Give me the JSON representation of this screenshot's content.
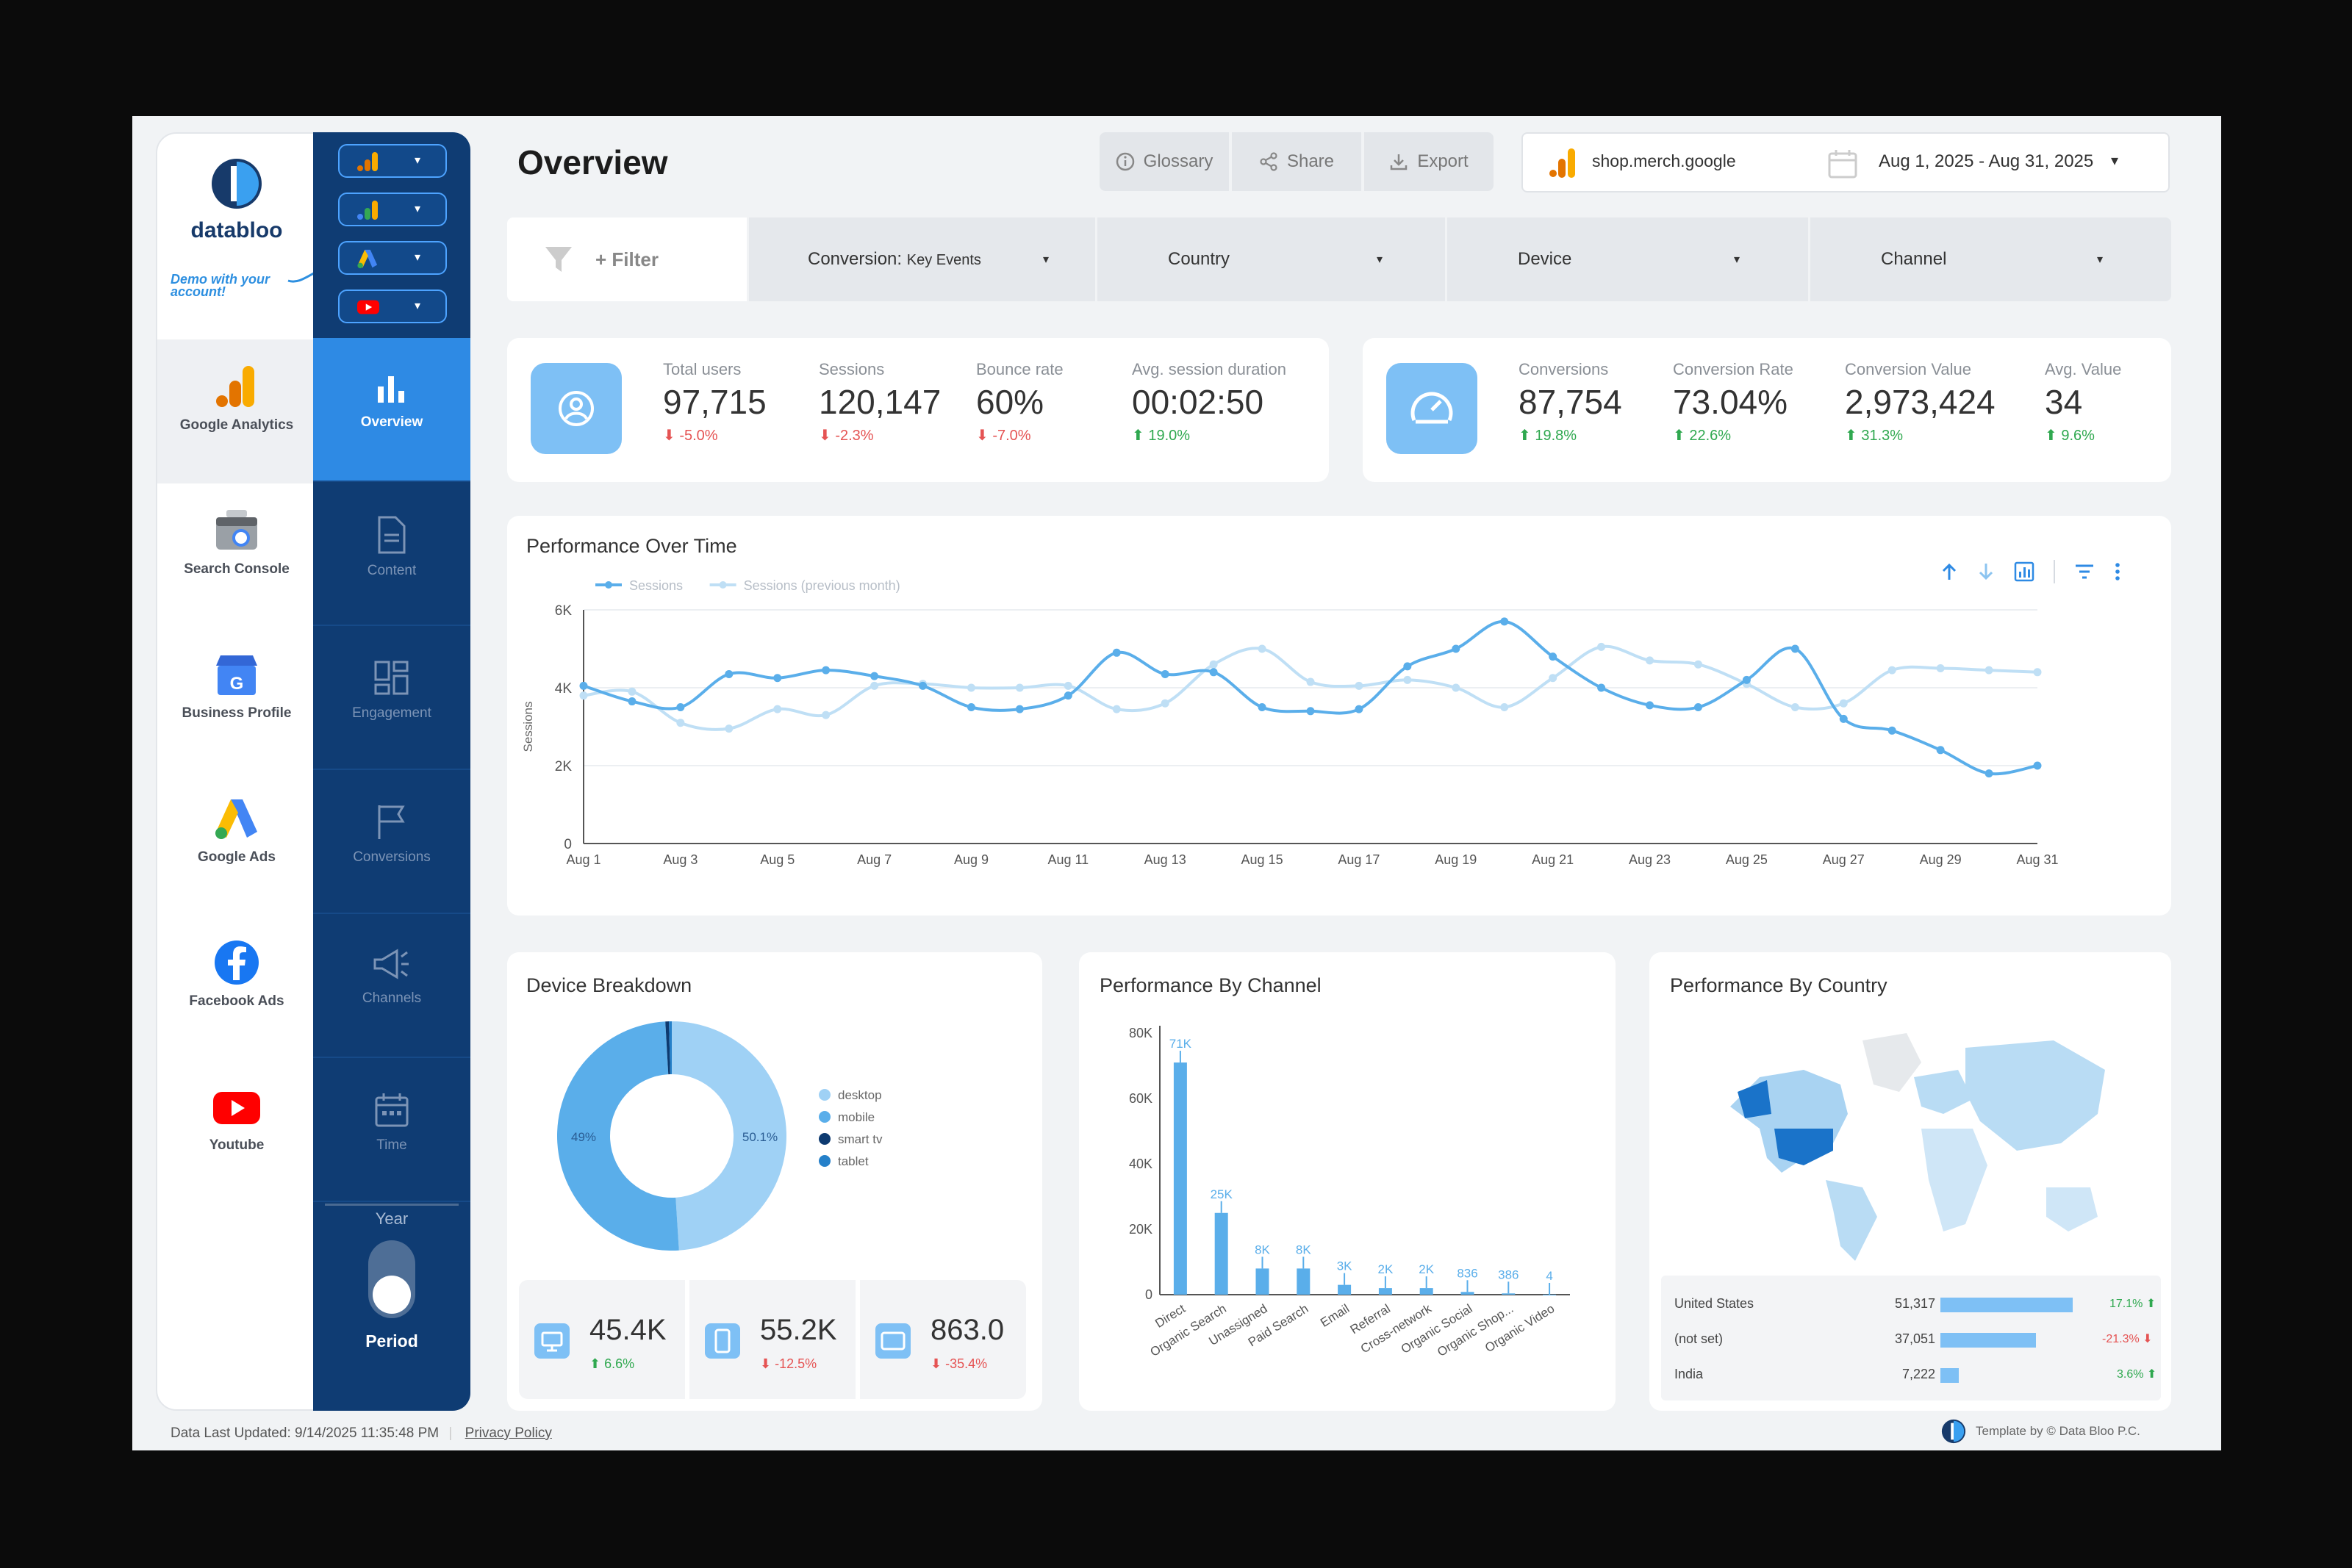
{
  "brand": {
    "name": "databloo",
    "demo_note": "Demo with your account!"
  },
  "sources": [
    {
      "label": "Google Analytics",
      "icon": "google-analytics-icon",
      "active": true
    },
    {
      "label": "Search Console",
      "icon": "search-console-icon"
    },
    {
      "label": "Business Profile",
      "icon": "business-profile-icon"
    },
    {
      "label": "Google Ads",
      "icon": "google-ads-icon"
    },
    {
      "label": "Facebook Ads",
      "icon": "facebook-icon"
    },
    {
      "label": "Youtube",
      "icon": "youtube-icon"
    }
  ],
  "account_buttons": [
    "google-analytics-icon",
    "google-analytics-4-icon",
    "google-ads-icon",
    "youtube-icon"
  ],
  "nav": [
    {
      "label": "Overview",
      "icon": "bar-chart-icon",
      "active": true
    },
    {
      "label": "Content",
      "icon": "document-icon"
    },
    {
      "label": "Engagement",
      "icon": "dashboard-icon"
    },
    {
      "label": "Conversions",
      "icon": "flag-icon"
    },
    {
      "label": "Channels",
      "icon": "megaphone-icon"
    },
    {
      "label": "Time",
      "icon": "calendar-icon"
    }
  ],
  "period": {
    "year_label": "Year",
    "period_label": "Period"
  },
  "header": {
    "title": "Overview",
    "glossary": "Glossary",
    "share": "Share",
    "export": "Export",
    "site": "shop.merch.google",
    "date_range": "Aug 1, 2025 - Aug 31, 2025"
  },
  "filters": {
    "add": "+ Filter",
    "conversion_prefix": "Conversion:",
    "conversion_value": "Key Events",
    "country": "Country",
    "device": "Device",
    "channel": "Channel"
  },
  "kpis_users": [
    {
      "label": "Total users",
      "value": "97,715",
      "change": "-5.0%",
      "dir": "down"
    },
    {
      "label": "Sessions",
      "value": "120,147",
      "change": "-2.3%",
      "dir": "down"
    },
    {
      "label": "Bounce rate",
      "value": "60%",
      "change": "-7.0%",
      "dir": "down"
    },
    {
      "label": "Avg. session duration",
      "value": "00:02:50",
      "change": "19.0%",
      "dir": "up"
    }
  ],
  "kpis_conversions": [
    {
      "label": "Conversions",
      "value": "87,754",
      "change": "19.8%",
      "dir": "up"
    },
    {
      "label": "Conversion Rate",
      "value": "73.04%",
      "change": "22.6%",
      "dir": "up"
    },
    {
      "label": "Conversion Value",
      "value": "2,973,424",
      "change": "31.3%",
      "dir": "up"
    },
    {
      "label": "Avg. Value",
      "value": "34",
      "change": "9.6%",
      "dir": "up"
    }
  ],
  "performance": {
    "title": "Performance Over Time",
    "ylabel": "Sessions"
  },
  "device": {
    "title": "Device Breakdown",
    "stats": [
      {
        "icon": "desktop-icon",
        "value": "45.4K",
        "change": "6.6%",
        "dir": "up"
      },
      {
        "icon": "mobile-icon",
        "value": "55.2K",
        "change": "-12.5%",
        "dir": "down"
      },
      {
        "icon": "tv-icon",
        "value": "863.0",
        "change": "-35.4%",
        "dir": "down"
      }
    ]
  },
  "channel": {
    "title": "Performance By Channel"
  },
  "country": {
    "title": "Performance By Country",
    "rows": [
      {
        "name": "United States",
        "value": "51,317",
        "share": 1.0,
        "change": "17.1%",
        "dir": "up"
      },
      {
        "name": "(not set)",
        "value": "37,051",
        "share": 0.72,
        "change": "-21.3%",
        "dir": "down"
      },
      {
        "name": "India",
        "value": "7,222",
        "share": 0.14,
        "change": "3.6%",
        "dir": "up"
      }
    ]
  },
  "footer": {
    "updated": "Data Last Updated: 9/14/2025 11:35:48 PM",
    "privacy": "Privacy Policy",
    "credit": "Template by © Data Bloo P.C."
  },
  "colors": {
    "navy": "#0f3c73",
    "accent": "#2e8ae4",
    "light_blue": "#7ec0f5",
    "series_current": "#5aaeea",
    "series_prev": "#bfdff5"
  },
  "chart_data": [
    {
      "type": "line",
      "x": [
        "Aug 1",
        "Aug 2",
        "Aug 3",
        "Aug 4",
        "Aug 5",
        "Aug 6",
        "Aug 7",
        "Aug 8",
        "Aug 9",
        "Aug 10",
        "Aug 11",
        "Aug 12",
        "Aug 13",
        "Aug 14",
        "Aug 15",
        "Aug 16",
        "Aug 17",
        "Aug 18",
        "Aug 19",
        "Aug 20",
        "Aug 21",
        "Aug 22",
        "Aug 23",
        "Aug 24",
        "Aug 25",
        "Aug 26",
        "Aug 27",
        "Aug 28",
        "Aug 29",
        "Aug 30",
        "Aug 31"
      ],
      "xticks": [
        "Aug 1",
        "Aug 3",
        "Aug 5",
        "Aug 7",
        "Aug 9",
        "Aug 11",
        "Aug 13",
        "Aug 15",
        "Aug 17",
        "Aug 19",
        "Aug 21",
        "Aug 23",
        "Aug 25",
        "Aug 27",
        "Aug 29",
        "Aug 31"
      ],
      "series": [
        {
          "name": "Sessions",
          "values": [
            4050,
            3650,
            3500,
            4350,
            4250,
            4450,
            4300,
            4050,
            3500,
            3450,
            3800,
            4900,
            4350,
            4400,
            3500,
            3400,
            3450,
            4550,
            5000,
            5700,
            4800,
            4000,
            3550,
            3500,
            4200,
            5000,
            3200,
            2900,
            2400,
            1800,
            2000
          ]
        },
        {
          "name": "Sessions (previous month)",
          "values": [
            3800,
            3900,
            3100,
            2950,
            3450,
            3300,
            4050,
            4100,
            4000,
            4000,
            4050,
            3450,
            3600,
            4600,
            5000,
            4150,
            4050,
            4200,
            4000,
            3500,
            4250,
            5050,
            4700,
            4600,
            4100,
            3500,
            3600,
            4450,
            4500,
            4450,
            4400
          ]
        }
      ],
      "ylabel": "Sessions",
      "yticks": [
        "0",
        "2K",
        "4K",
        "6K"
      ],
      "ylim": [
        0,
        6000
      ],
      "grid": true,
      "legend": "top-left"
    },
    {
      "type": "pie",
      "categories": [
        "desktop",
        "mobile",
        "smart tv",
        "tablet"
      ],
      "values": [
        49,
        50.1,
        0.5,
        0.4
      ],
      "labels": [
        "49%",
        "50.1%"
      ],
      "legend": "right"
    },
    {
      "type": "bar",
      "categories": [
        "Direct",
        "Organic Search",
        "Unassigned",
        "Paid Search",
        "Email",
        "Referral",
        "Cross-network",
        "Organic Social",
        "Organic Shop...",
        "Organic Video"
      ],
      "values": [
        71000,
        25000,
        8000,
        8000,
        3000,
        2000,
        2000,
        836,
        386,
        4
      ],
      "labels": [
        "71K",
        "25K",
        "8K",
        "8K",
        "3K",
        "2K",
        "2K",
        "836",
        "386",
        "4"
      ],
      "yticks": [
        "0",
        "20K",
        "40K",
        "60K",
        "80K"
      ],
      "ylim": [
        0,
        80000
      ],
      "grid": false
    }
  ]
}
